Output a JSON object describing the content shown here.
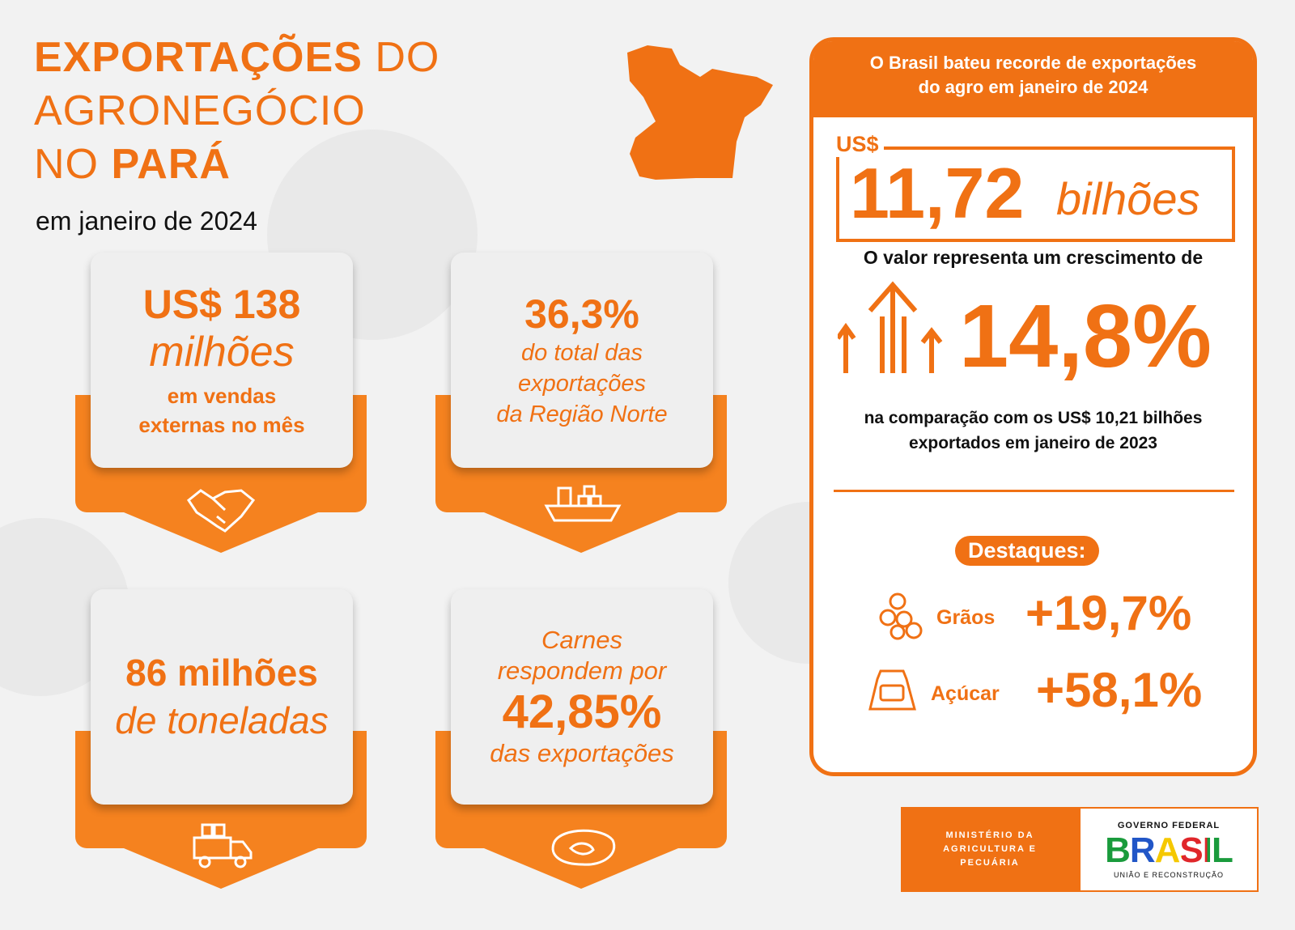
{
  "header": {
    "title_bold": "EXPORTAÇÕES",
    "title_light": "DO",
    "title_line2": "AGRONEGÓCIO",
    "title_line3_light": "NO",
    "title_line3_bold": "PARÁ",
    "subtitle": "em janeiro de 2024"
  },
  "cards": [
    {
      "lines": [
        "US$ 138",
        "milhões",
        "em vendas",
        "externas no mês"
      ]
    },
    {
      "lines": [
        "36,3%",
        "do total das",
        "exportações",
        "da Região Norte"
      ]
    },
    {
      "lines": [
        "86 milhões",
        "de toneladas"
      ]
    },
    {
      "lines": [
        "Carnes",
        "respondem por",
        "42,85%",
        "das exportações"
      ]
    }
  ],
  "panel": {
    "header": [
      "O Brasil bateu recorde de exportações",
      "do agro em janeiro de 2024"
    ],
    "currency": "US$",
    "amount": "11,72",
    "unit": "bilhões",
    "growth_intro": "O valor representa um crescimento de",
    "growth": "14,8%",
    "comparison": [
      "na comparação com os US$ 10,21 bilhões",
      "exportados em janeiro de 2023"
    ],
    "highlights_title": "Destaques:",
    "highlights": [
      {
        "label": "Grãos",
        "value": "+19,7%"
      },
      {
        "label": "Açúcar",
        "value": "+58,1%"
      }
    ]
  },
  "footer": {
    "ministry": [
      "MINISTÉRIO DA",
      "AGRICULTURA E",
      "PECUÁRIA"
    ],
    "government": "GOVERNO FEDERAL",
    "brand": "BRASIL",
    "tagline": "UNIÃO E RECONSTRUÇÃO"
  }
}
